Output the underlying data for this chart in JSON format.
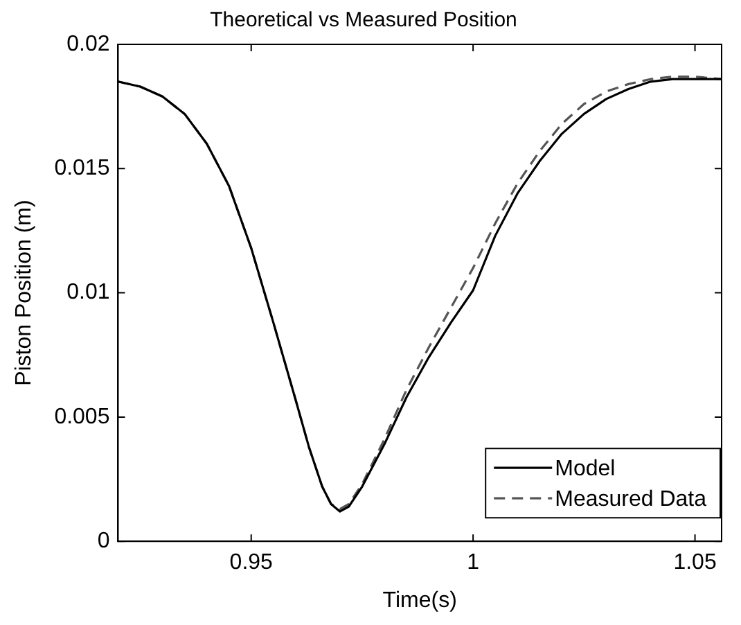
{
  "chart_data": {
    "type": "line",
    "title": "Theoretical vs Measured Position",
    "xlabel": "Time(s)",
    "ylabel": "Piston Position (m)",
    "xlim": [
      0.92,
      1.056
    ],
    "xticks": [
      0.95,
      1,
      1.05
    ],
    "ylim": [
      0,
      0.02
    ],
    "yticks": [
      0,
      0.005,
      0.01,
      0.015,
      0.02
    ],
    "legend": "bottom right",
    "marker": "none",
    "grid": false,
    "series": [
      {
        "name": "Model",
        "color": "#000000",
        "line_style": "solid",
        "x": [
          0.92,
          0.925,
          0.93,
          0.935,
          0.94,
          0.945,
          0.95,
          0.955,
          0.96,
          0.963,
          0.966,
          0.968,
          0.97,
          0.972,
          0.975,
          0.98,
          0.985,
          0.99,
          0.995,
          1.0,
          1.005,
          1.01,
          1.015,
          1.02,
          1.025,
          1.03,
          1.035,
          1.04,
          1.045,
          1.05,
          1.056
        ],
        "values": [
          0.0185,
          0.0183,
          0.0179,
          0.0172,
          0.016,
          0.0143,
          0.0118,
          0.0088,
          0.0057,
          0.0038,
          0.0022,
          0.0015,
          0.0012,
          0.0014,
          0.0022,
          0.0039,
          0.0058,
          0.0074,
          0.0088,
          0.0101,
          0.0123,
          0.014,
          0.0153,
          0.0164,
          0.0172,
          0.0178,
          0.0182,
          0.0185,
          0.0186,
          0.0186,
          0.0186
        ]
      },
      {
        "name": "Measured Data",
        "color": "#555555",
        "line_style": "dashed",
        "x": [
          0.92,
          0.925,
          0.93,
          0.935,
          0.94,
          0.945,
          0.95,
          0.955,
          0.96,
          0.963,
          0.966,
          0.968,
          0.97,
          0.972,
          0.975,
          0.98,
          0.985,
          0.99,
          0.995,
          1.0,
          1.005,
          1.01,
          1.015,
          1.02,
          1.025,
          1.03,
          1.035,
          1.04,
          1.045,
          1.05,
          1.056
        ],
        "values": [
          0.0185,
          0.0183,
          0.0179,
          0.0172,
          0.016,
          0.0143,
          0.0118,
          0.0088,
          0.0057,
          0.0038,
          0.0022,
          0.0015,
          0.0013,
          0.0015,
          0.0023,
          0.0041,
          0.0061,
          0.0078,
          0.0094,
          0.011,
          0.0128,
          0.0144,
          0.0157,
          0.0168,
          0.0176,
          0.0181,
          0.0184,
          0.0186,
          0.0187,
          0.0187,
          0.0186
        ]
      }
    ]
  }
}
